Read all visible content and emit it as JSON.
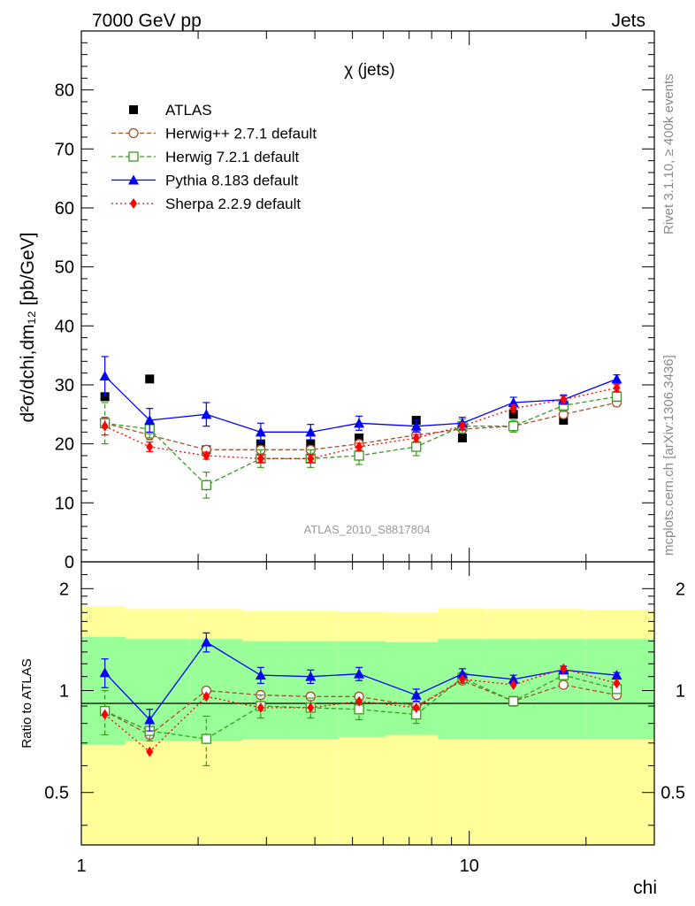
{
  "header": {
    "left": "7000 GeV pp",
    "right": "Jets"
  },
  "side_labels": {
    "top": "Rivet 3.1.10, ≥ 400k events",
    "bottom": "mcplots.cern.ch [arXiv:1306.3436]"
  },
  "watermark": "ATLAS_2010_S8817804",
  "chart_data": {
    "type": "line",
    "title": "χ (jets)",
    "x": [
      1.15,
      1.5,
      2.1,
      2.9,
      3.9,
      5.2,
      7.3,
      9.6,
      13.0,
      17.5,
      24.0
    ],
    "xlabel": "chi",
    "xscale": "log",
    "xlim": [
      1,
      30
    ],
    "x_ticks": [
      "1",
      "10"
    ],
    "main": {
      "ylabel": "d²σ/dchi,dm₁₂ [pb/GeV]",
      "ylim": [
        0,
        90
      ],
      "y_ticks": [
        "0",
        "10",
        "20",
        "30",
        "40",
        "50",
        "60",
        "70",
        "80"
      ],
      "series": [
        {
          "name": "ATLAS",
          "color": "#000000",
          "marker": "square",
          "line": "none",
          "values": [
            28,
            31,
            19,
            20,
            20,
            21,
            24,
            21,
            25,
            24,
            28
          ]
        },
        {
          "name": "Herwig++ 2.7.1 default",
          "color": "#a0522d",
          "marker": "open-circle",
          "line": "dashed",
          "values": [
            23.5,
            21.5,
            19,
            19,
            19,
            20,
            21.5,
            22.5,
            23,
            25,
            27
          ],
          "errors": [
            0.8,
            0.8,
            0.6,
            0.6,
            0.6,
            0.6,
            0.6,
            0.6,
            0.6,
            0.6,
            0.6
          ]
        },
        {
          "name": "Herwig 7.2.1 default",
          "color": "#3a9a1e",
          "marker": "open-square",
          "line": "dashed",
          "values": [
            23.5,
            22.5,
            13,
            17.5,
            17.5,
            18,
            19.5,
            23,
            23,
            26.5,
            28
          ],
          "errors": [
            3.5,
            1.5,
            2.2,
            1.5,
            1.5,
            1.5,
            1.5,
            1.2,
            1.0,
            1.0,
            0.8
          ]
        },
        {
          "name": "Pythia 8.183 default",
          "color": "#0000ff",
          "marker": "triangle",
          "line": "solid",
          "values": [
            31.5,
            24,
            25,
            22,
            22,
            23.5,
            23,
            23.5,
            27,
            27.5,
            31
          ],
          "errors": [
            3.3,
            2.0,
            2.0,
            1.5,
            1.3,
            1.2,
            1.0,
            1.0,
            0.9,
            0.8,
            0.7
          ]
        },
        {
          "name": "Sherpa 2.2.9 default",
          "color": "#ff0000",
          "marker": "diamond",
          "line": "dotted",
          "values": [
            23,
            19.5,
            18,
            17.5,
            17.5,
            19.5,
            21,
            23,
            26,
            27.5,
            29.5
          ],
          "errors": [
            1.5,
            0.8,
            0.6,
            0.6,
            0.6,
            0.6,
            0.6,
            0.6,
            0.6,
            0.6,
            0.6
          ]
        }
      ]
    },
    "ratio": {
      "ylabel": "Ratio to ATLAS",
      "ylim": [
        0.35,
        2.4
      ],
      "y_ticks": [
        "0.5",
        "1",
        "2"
      ],
      "band_edges": [
        1,
        1.3,
        1.9,
        2.6,
        3.4,
        4.6,
        6.1,
        8.3,
        11,
        15,
        20,
        30
      ],
      "yellow_band": {
        "color": "#ffff99",
        "low": [
          0.35,
          0.35,
          0.35,
          0.35,
          0.35,
          0.35,
          0.35,
          0.35,
          0.35,
          0.35,
          0.35
        ],
        "high": [
          1.77,
          1.74,
          1.74,
          1.72,
          1.72,
          1.71,
          1.7,
          1.75,
          1.74,
          1.74,
          1.73
        ]
      },
      "green_band": {
        "color": "#99ff99",
        "low": [
          0.69,
          0.71,
          0.71,
          0.72,
          0.72,
          0.73,
          0.74,
          0.72,
          0.72,
          0.72,
          0.72
        ],
        "high": [
          1.44,
          1.42,
          1.42,
          1.4,
          1.4,
          1.4,
          1.39,
          1.42,
          1.42,
          1.42,
          1.42
        ]
      },
      "series": [
        {
          "name": "Herwig++ 2.7.1 default",
          "values": [
            0.87,
            0.74,
            1.0,
            0.97,
            0.96,
            0.96,
            0.9,
            1.07,
            0.93,
            1.04,
            0.97
          ]
        },
        {
          "name": "Herwig 7.2.1 default",
          "values": [
            0.87,
            0.76,
            0.72,
            0.9,
            0.89,
            0.88,
            0.85,
            1.09,
            0.93,
            1.11,
            1.01
          ],
          "errors": [
            0.13,
            0.05,
            0.12,
            0.07,
            0.06,
            0.06,
            0.05,
            0.04,
            0.03,
            0.03,
            0.02
          ]
        },
        {
          "name": "Pythia 8.183 default",
          "values": [
            1.13,
            0.82,
            1.39,
            1.11,
            1.1,
            1.12,
            0.97,
            1.12,
            1.08,
            1.15,
            1.11
          ],
          "errors": [
            0.11,
            0.06,
            0.09,
            0.06,
            0.05,
            0.05,
            0.04,
            0.04,
            0.03,
            0.03,
            0.02
          ]
        },
        {
          "name": "Sherpa 2.2.9 default",
          "values": [
            0.85,
            0.66,
            0.96,
            0.89,
            0.89,
            0.93,
            0.89,
            1.08,
            1.04,
            1.16,
            1.05
          ]
        }
      ]
    }
  }
}
